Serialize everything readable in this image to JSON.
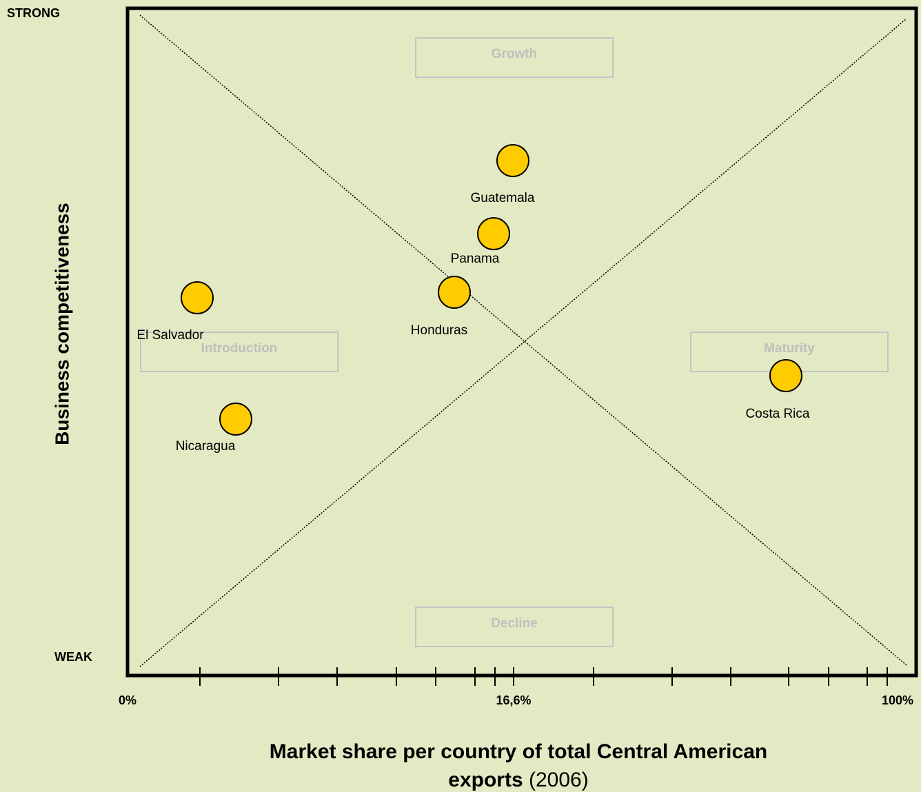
{
  "axes": {
    "y_top": "STRONG",
    "y_bottom": "WEAK",
    "y_title": "Business competitiveness",
    "x_labels": [
      "0%",
      "16,6%",
      "100%"
    ],
    "x_title": {
      "line1": "Market share per country of total Central American",
      "line2": "exports",
      "note": "(2006)"
    }
  },
  "phases": [
    "Growth",
    "Introduction",
    "Maturity",
    "Decline"
  ],
  "nodes": [
    {
      "label": "Guatemala"
    },
    {
      "label": "Panama"
    },
    {
      "label": "Honduras"
    },
    {
      "label": "El Salvador"
    },
    {
      "label": "Nicaragua"
    },
    {
      "label": "Costa Rica"
    }
  ]
}
